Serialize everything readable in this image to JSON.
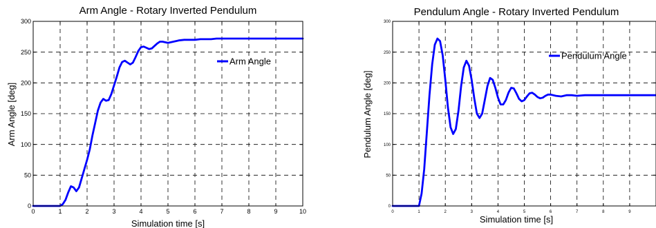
{
  "chart_data": [
    {
      "type": "line",
      "title": "Arm Angle - Rotary Inverted Pendulum",
      "xlabel": "Simulation time [s]",
      "ylabel": "Arm Angle [deg]",
      "xlim": [
        0,
        10
      ],
      "ylim": [
        0,
        300
      ],
      "xticks": [
        "0",
        "1",
        "2",
        "3",
        "4",
        "5",
        "6",
        "7",
        "8",
        "9",
        "10"
      ],
      "yticks": [
        "0",
        "50",
        "100",
        "150",
        "200",
        "250",
        "300"
      ],
      "grid": true,
      "legend_position": "top-right",
      "series": [
        {
          "name": "Arm Angle",
          "color": "#0000ff",
          "x": [
            0,
            0.5,
            1.0,
            1.1,
            1.2,
            1.3,
            1.4,
            1.5,
            1.6,
            1.7,
            1.8,
            1.9,
            2.0,
            2.1,
            2.2,
            2.3,
            2.4,
            2.5,
            2.6,
            2.7,
            2.8,
            2.9,
            3.0,
            3.1,
            3.2,
            3.3,
            3.4,
            3.5,
            3.6,
            3.7,
            3.8,
            3.9,
            4.0,
            4.1,
            4.2,
            4.3,
            4.4,
            4.5,
            4.6,
            4.7,
            4.8,
            4.9,
            5.0,
            5.2,
            5.4,
            5.6,
            5.8,
            6.0,
            6.2,
            6.4,
            6.6,
            6.8,
            7.0,
            7.3,
            7.6,
            8.0,
            8.5,
            9.0,
            9.5,
            10.0
          ],
          "y": [
            0,
            0,
            0,
            3,
            10,
            22,
            32,
            30,
            24,
            30,
            45,
            60,
            75,
            92,
            115,
            135,
            155,
            168,
            174,
            171,
            172,
            182,
            196,
            210,
            225,
            234,
            236,
            233,
            230,
            233,
            242,
            252,
            258,
            259,
            257,
            255,
            256,
            260,
            264,
            267,
            267,
            266,
            265,
            267,
            269,
            270,
            270,
            270,
            271,
            271,
            271,
            272,
            272,
            272,
            272,
            272,
            272,
            272,
            272,
            272
          ]
        }
      ]
    },
    {
      "type": "line",
      "title": "Pendulum Angle - Rotary Inverted Pendulum",
      "xlabel": "Simulation time [s]",
      "ylabel": "Pendulum Angle [deg]",
      "xlim": [
        0,
        10
      ],
      "ylim": [
        0,
        300
      ],
      "xticks": [
        "0",
        "1",
        "2",
        "3",
        "4",
        "5",
        "6",
        "7",
        "8",
        "9",
        ""
      ],
      "yticks": [
        "0",
        "50",
        "100",
        "150",
        "200",
        "250",
        "300"
      ],
      "grid": true,
      "legend_position": "top-right",
      "series": [
        {
          "name": "Pendulum Angle",
          "color": "#0000ff",
          "x": [
            0,
            0.5,
            1.0,
            1.1,
            1.2,
            1.3,
            1.4,
            1.5,
            1.6,
            1.7,
            1.8,
            1.9,
            2.0,
            2.1,
            2.2,
            2.3,
            2.4,
            2.5,
            2.6,
            2.7,
            2.8,
            2.9,
            3.0,
            3.1,
            3.2,
            3.3,
            3.4,
            3.5,
            3.6,
            3.7,
            3.8,
            3.9,
            4.0,
            4.1,
            4.2,
            4.3,
            4.4,
            4.5,
            4.6,
            4.7,
            4.8,
            4.9,
            5.0,
            5.1,
            5.2,
            5.3,
            5.4,
            5.5,
            5.6,
            5.7,
            5.8,
            5.9,
            6.0,
            6.2,
            6.4,
            6.6,
            6.8,
            7.0,
            7.3,
            7.6,
            8.0,
            8.5,
            9.0,
            9.5,
            10.0
          ],
          "y": [
            0,
            0,
            0,
            20,
            60,
            120,
            180,
            230,
            262,
            272,
            268,
            245,
            205,
            160,
            128,
            117,
            125,
            155,
            195,
            225,
            236,
            228,
            205,
            175,
            150,
            143,
            150,
            172,
            195,
            208,
            205,
            192,
            176,
            165,
            165,
            172,
            184,
            192,
            191,
            183,
            174,
            170,
            172,
            178,
            183,
            184,
            181,
            177,
            175,
            176,
            179,
            181,
            181,
            179,
            178,
            180,
            180,
            179,
            180,
            180,
            180,
            180,
            180,
            180,
            180
          ]
        }
      ]
    }
  ]
}
